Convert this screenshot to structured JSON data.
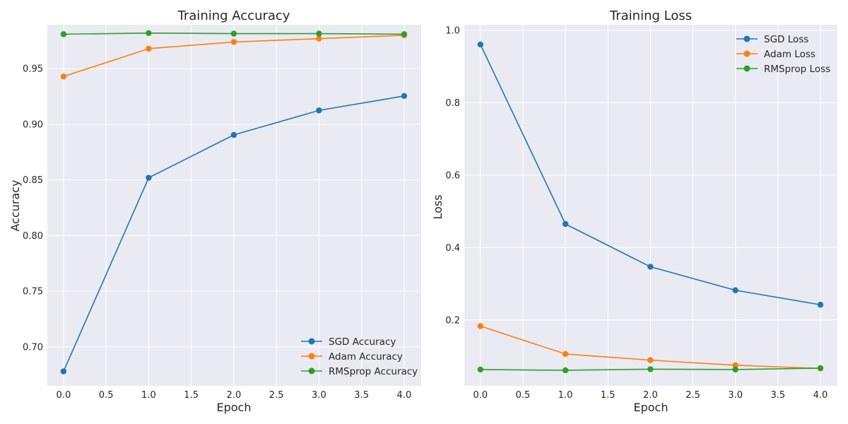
{
  "figure": {
    "background": "#ffffff",
    "plot_background": "#eaeaf2",
    "grid_color": "#ffffff"
  },
  "chart_data": [
    {
      "type": "line",
      "title": "Training Accuracy",
      "xlabel": "Epoch",
      "ylabel": "Accuracy",
      "x": [
        0,
        1,
        2,
        3,
        4
      ],
      "xlim": [
        -0.19,
        4.2
      ],
      "ylim": [
        0.665,
        0.9895
      ],
      "xticks": [
        0.0,
        0.5,
        1.0,
        1.5,
        2.0,
        2.5,
        3.0,
        3.5,
        4.0
      ],
      "xtick_labels": [
        "0.0",
        "0.5",
        "1.0",
        "1.5",
        "2.0",
        "2.5",
        "3.0",
        "3.5",
        "4.0"
      ],
      "yticks": [
        0.7,
        0.75,
        0.8,
        0.85,
        0.9,
        0.95
      ],
      "ytick_labels": [
        "0.70",
        "0.75",
        "0.80",
        "0.85",
        "0.90",
        "0.95"
      ],
      "grid": true,
      "legend_position": "bottom-right",
      "series": [
        {
          "name": "SGD Accuracy",
          "color": "#1f77b4",
          "values": [
            0.678,
            0.852,
            0.8905,
            0.9125,
            0.9255
          ]
        },
        {
          "name": "Adam Accuracy",
          "color": "#ff7f0e",
          "values": [
            0.943,
            0.968,
            0.974,
            0.977,
            0.98
          ]
        },
        {
          "name": "RMSprop Accuracy",
          "color": "#2ca02c",
          "values": [
            0.981,
            0.982,
            0.9815,
            0.9815,
            0.981
          ]
        }
      ]
    },
    {
      "type": "line",
      "title": "Training Loss",
      "xlabel": "Epoch",
      "ylabel": "Loss",
      "x": [
        0,
        1,
        2,
        3,
        4
      ],
      "xlim": [
        -0.19,
        4.2
      ],
      "ylim": [
        0.018,
        1.0155
      ],
      "xticks": [
        0.0,
        0.5,
        1.0,
        1.5,
        2.0,
        2.5,
        3.0,
        3.5,
        4.0
      ],
      "xtick_labels": [
        "0.0",
        "0.5",
        "1.0",
        "1.5",
        "2.0",
        "2.5",
        "3.0",
        "3.5",
        "4.0"
      ],
      "yticks": [
        0.2,
        0.4,
        0.6,
        0.8,
        1.0
      ],
      "ytick_labels": [
        "0.2",
        "0.4",
        "0.6",
        "0.8",
        "1.0"
      ],
      "grid": true,
      "legend_position": "top-right",
      "series": [
        {
          "name": "SGD Loss",
          "color": "#1f77b4",
          "values": [
            0.961,
            0.465,
            0.347,
            0.282,
            0.242
          ]
        },
        {
          "name": "Adam Loss",
          "color": "#ff7f0e",
          "values": [
            0.183,
            0.106,
            0.089,
            0.075,
            0.066
          ]
        },
        {
          "name": "RMSprop Loss",
          "color": "#2ca02c",
          "values": [
            0.063,
            0.061,
            0.064,
            0.063,
            0.067
          ]
        }
      ]
    }
  ]
}
